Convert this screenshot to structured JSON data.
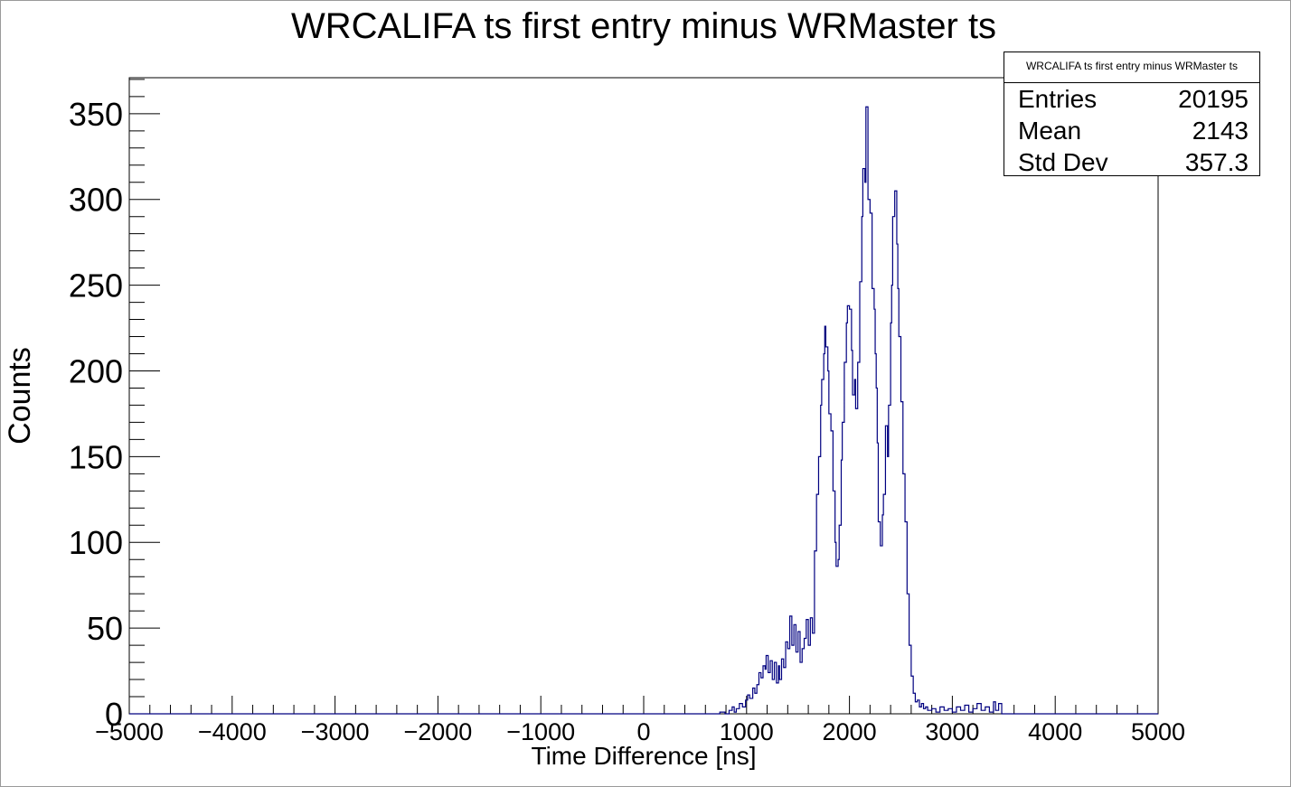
{
  "chart_data": {
    "type": "histogram",
    "title": "WRCALIFA ts first entry minus WRMaster ts",
    "xlabel": "Time Difference [ns]",
    "ylabel": "Counts",
    "xlim": [
      -5000,
      5000
    ],
    "ylim": [
      0,
      371
    ],
    "x_ticks": [
      -5000,
      -4000,
      -3000,
      -2000,
      -1000,
      0,
      1000,
      2000,
      3000,
      4000,
      5000
    ],
    "x_tick_labels": [
      "−5000",
      "−4000",
      "−3000",
      "−2000",
      "−1000",
      "0",
      "1000",
      "2000",
      "3000",
      "4000",
      "5000"
    ],
    "y_ticks": [
      0,
      50,
      100,
      150,
      200,
      250,
      300,
      350
    ],
    "y_tick_labels": [
      "0",
      "50",
      "100",
      "150",
      "200",
      "250",
      "300",
      "350"
    ],
    "line_color": "#000080",
    "points": [
      [
        700,
        0
      ],
      [
        740,
        1
      ],
      [
        790,
        0
      ],
      [
        830,
        2
      ],
      [
        860,
        4
      ],
      [
        880,
        1
      ],
      [
        900,
        3
      ],
      [
        930,
        6
      ],
      [
        960,
        4
      ],
      [
        990,
        8
      ],
      [
        1010,
        11
      ],
      [
        1030,
        9
      ],
      [
        1060,
        15
      ],
      [
        1080,
        12
      ],
      [
        1100,
        17
      ],
      [
        1120,
        24
      ],
      [
        1140,
        21
      ],
      [
        1160,
        28
      ],
      [
        1180,
        26
      ],
      [
        1190,
        34
      ],
      [
        1210,
        24
      ],
      [
        1230,
        31
      ],
      [
        1250,
        20
      ],
      [
        1270,
        30
      ],
      [
        1290,
        18
      ],
      [
        1310,
        28
      ],
      [
        1320,
        20
      ],
      [
        1340,
        32
      ],
      [
        1360,
        27
      ],
      [
        1380,
        42
      ],
      [
        1400,
        38
      ],
      [
        1420,
        57
      ],
      [
        1440,
        40
      ],
      [
        1460,
        52
      ],
      [
        1480,
        36
      ],
      [
        1500,
        48
      ],
      [
        1520,
        30
      ],
      [
        1540,
        38
      ],
      [
        1560,
        44
      ],
      [
        1580,
        55
      ],
      [
        1600,
        40
      ],
      [
        1620,
        56
      ],
      [
        1640,
        47
      ],
      [
        1660,
        95
      ],
      [
        1680,
        128
      ],
      [
        1700,
        150
      ],
      [
        1720,
        180
      ],
      [
        1730,
        195
      ],
      [
        1750,
        210
      ],
      [
        1760,
        226
      ],
      [
        1770,
        214
      ],
      [
        1790,
        200
      ],
      [
        1800,
        175
      ],
      [
        1820,
        165
      ],
      [
        1840,
        130
      ],
      [
        1860,
        100
      ],
      [
        1870,
        86
      ],
      [
        1890,
        90
      ],
      [
        1900,
        110
      ],
      [
        1920,
        148
      ],
      [
        1930,
        170
      ],
      [
        1950,
        205
      ],
      [
        1970,
        228
      ],
      [
        1980,
        238
      ],
      [
        2000,
        236
      ],
      [
        2020,
        212
      ],
      [
        2030,
        186
      ],
      [
        2050,
        195
      ],
      [
        2060,
        178
      ],
      [
        2080,
        205
      ],
      [
        2100,
        252
      ],
      [
        2120,
        290
      ],
      [
        2130,
        318
      ],
      [
        2150,
        310
      ],
      [
        2160,
        354
      ],
      [
        2180,
        300
      ],
      [
        2200,
        292
      ],
      [
        2220,
        248
      ],
      [
        2240,
        236
      ],
      [
        2250,
        210
      ],
      [
        2260,
        190
      ],
      [
        2270,
        158
      ],
      [
        2280,
        112
      ],
      [
        2300,
        98
      ],
      [
        2320,
        116
      ],
      [
        2330,
        128
      ],
      [
        2350,
        168
      ],
      [
        2370,
        150
      ],
      [
        2380,
        180
      ],
      [
        2400,
        228
      ],
      [
        2410,
        250
      ],
      [
        2420,
        290
      ],
      [
        2440,
        305
      ],
      [
        2460,
        274
      ],
      [
        2470,
        248
      ],
      [
        2480,
        220
      ],
      [
        2500,
        182
      ],
      [
        2520,
        140
      ],
      [
        2540,
        112
      ],
      [
        2560,
        70
      ],
      [
        2580,
        40
      ],
      [
        2600,
        22
      ],
      [
        2620,
        12
      ],
      [
        2640,
        7
      ],
      [
        2660,
        8
      ],
      [
        2680,
        4
      ],
      [
        2700,
        6
      ],
      [
        2720,
        3
      ],
      [
        2740,
        4
      ],
      [
        2760,
        2
      ],
      [
        2800,
        3
      ],
      [
        2840,
        1
      ],
      [
        2880,
        4
      ],
      [
        2920,
        2
      ],
      [
        2960,
        3
      ],
      [
        3000,
        1
      ],
      [
        3040,
        4
      ],
      [
        3080,
        2
      ],
      [
        3120,
        5
      ],
      [
        3160,
        1
      ],
      [
        3200,
        3
      ],
      [
        3240,
        6
      ],
      [
        3280,
        2
      ],
      [
        3320,
        4
      ],
      [
        3360,
        1
      ],
      [
        3400,
        7
      ],
      [
        3420,
        2
      ],
      [
        3450,
        6
      ],
      [
        3480,
        0
      ]
    ]
  },
  "stats_box": {
    "title": "WRCALIFA ts first entry minus WRMaster ts",
    "rows": [
      {
        "label": "Entries",
        "value": "20195"
      },
      {
        "label": "Mean",
        "value": "2143"
      },
      {
        "label": "Std Dev",
        "value": "357.3"
      }
    ]
  }
}
